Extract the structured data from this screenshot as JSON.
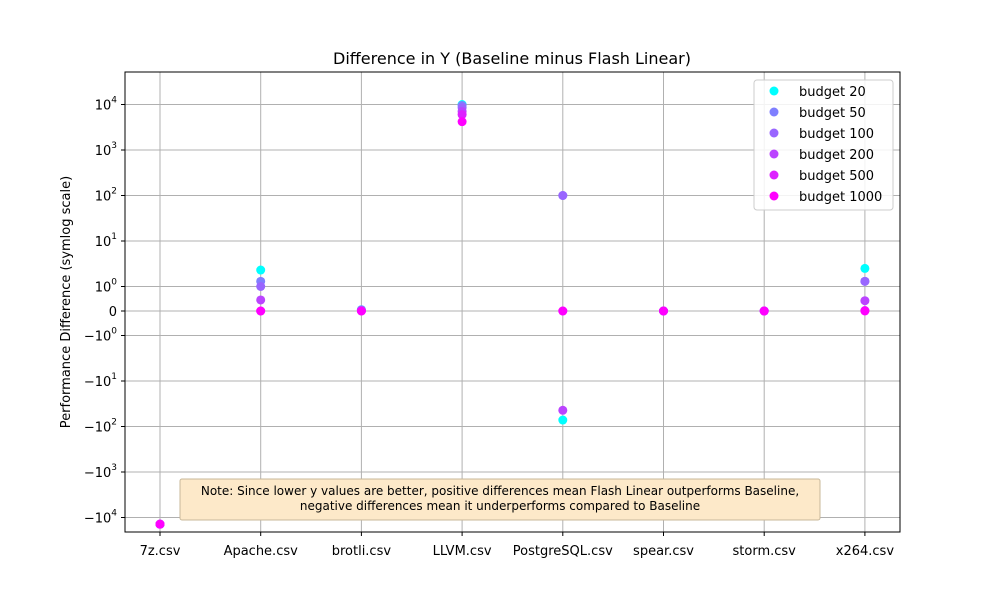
{
  "chart_data": {
    "type": "scatter",
    "title": "Difference in Y (Baseline minus Flash Linear)",
    "xlabel": "",
    "ylabel": "Performance Difference (symlog scale)",
    "yscale": "symlog",
    "linthresh": 1,
    "ylim": [
      -20000,
      30000
    ],
    "categories": [
      "7z.csv",
      "Apache.csv",
      "brotli.csv",
      "LLVM.csv",
      "PostgreSQL.csv",
      "spear.csv",
      "storm.csv",
      "x264.csv"
    ],
    "yticks": [
      {
        "value": 10000,
        "base": "10",
        "exp": "4",
        "neg": false
      },
      {
        "value": 1000,
        "base": "10",
        "exp": "3",
        "neg": false
      },
      {
        "value": 100,
        "base": "10",
        "exp": "2",
        "neg": false
      },
      {
        "value": 10,
        "base": "10",
        "exp": "1",
        "neg": false
      },
      {
        "value": 1,
        "base": "10",
        "exp": "0",
        "neg": false
      },
      {
        "value": 0,
        "base": "0",
        "exp": "",
        "neg": false
      },
      {
        "value": -1,
        "base": "10",
        "exp": "0",
        "neg": true
      },
      {
        "value": -10,
        "base": "10",
        "exp": "1",
        "neg": true
      },
      {
        "value": -100,
        "base": "10",
        "exp": "2",
        "neg": true
      },
      {
        "value": -1000,
        "base": "10",
        "exp": "3",
        "neg": true
      },
      {
        "value": -10000,
        "base": "10",
        "exp": "4",
        "neg": true
      }
    ],
    "grid": true,
    "legend_position": "top-right",
    "series": [
      {
        "name": "budget 20",
        "color": "#00ffff",
        "values": [
          -14000,
          2.3,
          0.05,
          10000,
          -72,
          0,
          0,
          2.5
        ]
      },
      {
        "name": "budget 50",
        "color": "#7f7fff",
        "values": [
          -14000,
          1.3,
          0.05,
          9500,
          100,
          0,
          0,
          1.3
        ]
      },
      {
        "name": "budget 100",
        "color": "#9966ff",
        "values": [
          -14000,
          1.0,
          0.02,
          8500,
          100,
          0,
          0,
          1.3
        ]
      },
      {
        "name": "budget 200",
        "color": "#bb44ff",
        "values": [
          -14000,
          0.45,
          0.01,
          7000,
          -44,
          0,
          0,
          0.42
        ]
      },
      {
        "name": "budget 500",
        "color": "#dd22ff",
        "values": [
          -14000,
          0,
          0,
          6000,
          0,
          0,
          0,
          0.02
        ]
      },
      {
        "name": "budget 1000",
        "color": "#ff00ff",
        "values": [
          -14000,
          0,
          0,
          4200,
          0,
          0,
          0,
          0
        ]
      }
    ],
    "annotation": {
      "lines": [
        "Note: Since lower y values are better, positive differences mean Flash Linear outperforms Baseline,",
        "negative differences mean it underperforms compared to Baseline"
      ],
      "background": "#fde9c9"
    }
  }
}
